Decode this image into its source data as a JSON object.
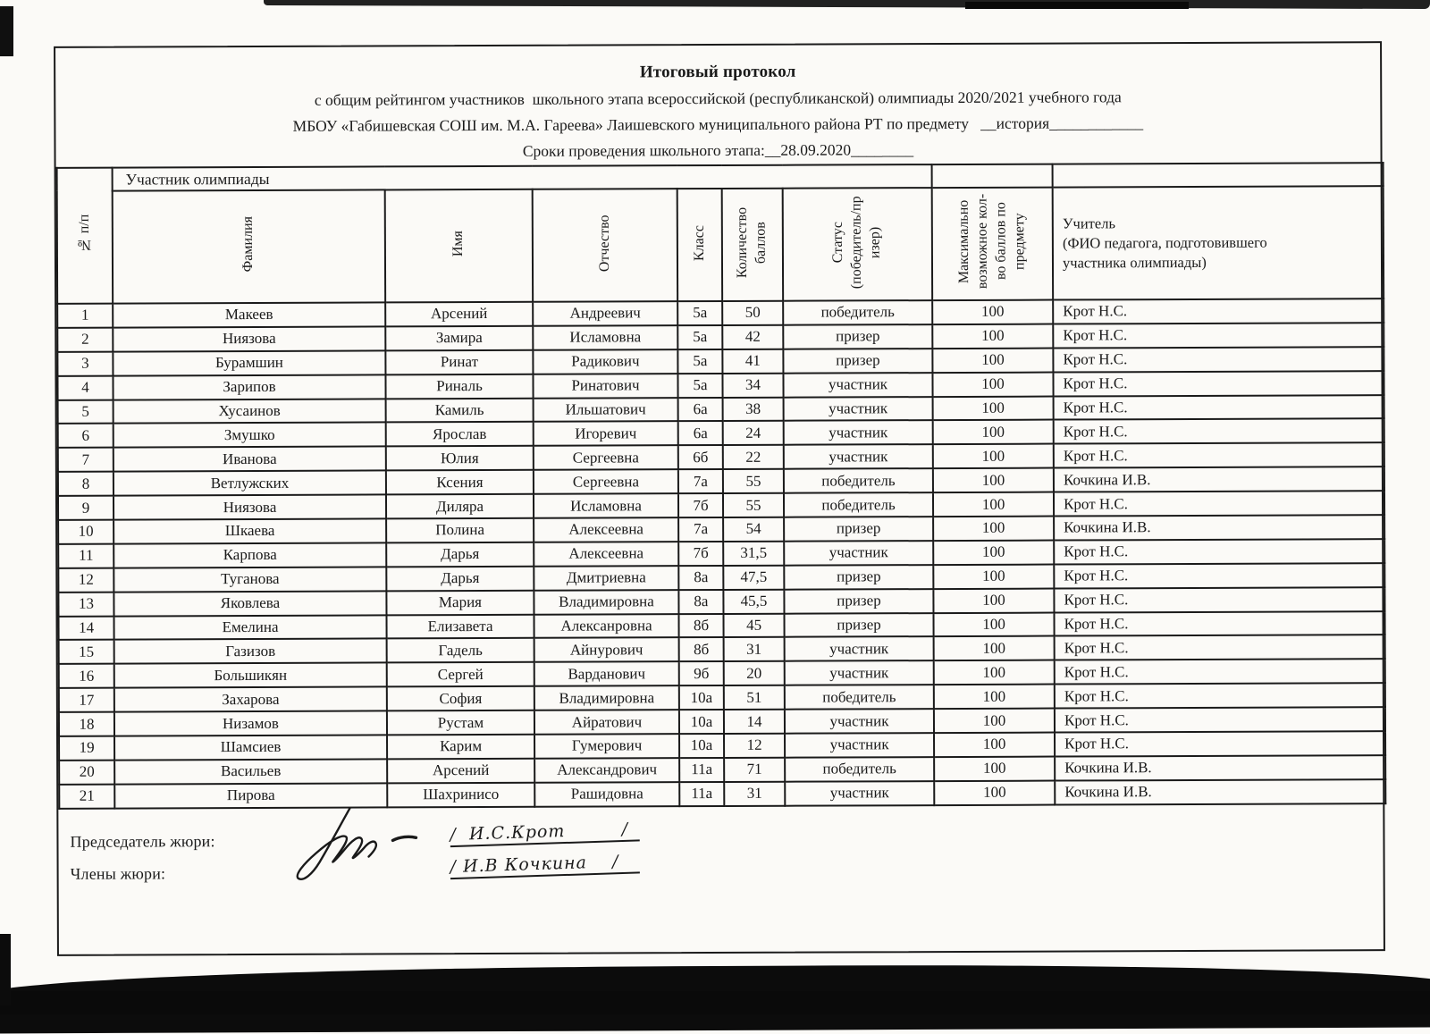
{
  "scan": {
    "ink_color": "#1a1a1a",
    "paper_color": "#fbfaf7",
    "edge_band_color": "#101010"
  },
  "header": {
    "title": "Итоговый протокол",
    "line2": "с общим рейтингом участников  школьного этапа всероссийской (республиканской) олимпиады 2020/2021 учебного года",
    "line3": "МБОУ «Габишевская СОШ им. М.А. Гареева» Лаишевского муниципального района РТ по предмету   __история____________",
    "line4": "Сроки проведения школьного этапа:__28.09.2020________"
  },
  "table": {
    "group_header": "Участник олимпиады",
    "columns": [
      "№ п/п",
      "Фамилия",
      "Имя",
      "Отчество",
      "Класс",
      "Количество\nбаллов",
      "Статус\n(победитель/пр\nизер)",
      "Максимально\nвозможное кол-\nво баллов  по\nпредмету",
      "Учитель\n(ФИО педагога, подготовившего\nучастника олимпиады)"
    ],
    "rows": [
      [
        "1",
        "Макеев",
        "Арсений",
        "Андреевич",
        "5а",
        "50",
        "победитель",
        "100",
        "Крот Н.С."
      ],
      [
        "2",
        "Ниязова",
        "Замира",
        "Исламовна",
        "5а",
        "42",
        "призер",
        "100",
        "Крот Н.С."
      ],
      [
        "3",
        "Бурамшин",
        "Ринат",
        "Радикович",
        "5а",
        "41",
        "призер",
        "100",
        "Крот Н.С."
      ],
      [
        "4",
        "Зарипов",
        "Риналь",
        "Ринатович",
        "5а",
        "34",
        "участник",
        "100",
        "Крот Н.С."
      ],
      [
        "5",
        "Хусаинов",
        "Камиль",
        "Ильшатович",
        "6а",
        "38",
        "участник",
        "100",
        "Крот Н.С."
      ],
      [
        "6",
        "Змушко",
        "Ярослав",
        "Игоревич",
        "6а",
        "24",
        "участник",
        "100",
        "Крот Н.С."
      ],
      [
        "7",
        "Иванова",
        "Юлия",
        "Сергеевна",
        "6б",
        "22",
        "участник",
        "100",
        "Крот Н.С."
      ],
      [
        "8",
        "Ветлужских",
        "Ксения",
        "Сергеевна",
        "7а",
        "55",
        "победитель",
        "100",
        "Кочкина И.В."
      ],
      [
        "9",
        "Ниязова",
        "Диляра",
        "Исламовна",
        "7б",
        "55",
        "победитель",
        "100",
        "Крот Н.С."
      ],
      [
        "10",
        "Шкаева",
        "Полина",
        "Алексеевна",
        "7а",
        "54",
        "призер",
        "100",
        "Кочкина И.В."
      ],
      [
        "11",
        "Карпова",
        "Дарья",
        "Алексеевна",
        "7б",
        "31,5",
        "участник",
        "100",
        "Крот Н.С."
      ],
      [
        "12",
        "Туганова",
        "Дарья",
        "Дмитриевна",
        "8а",
        "47,5",
        "призер",
        "100",
        "Крот Н.С."
      ],
      [
        "13",
        "Яковлева",
        "Мария",
        "Владимировна",
        "8а",
        "45,5",
        "призер",
        "100",
        "Крот Н.С."
      ],
      [
        "14",
        "Емелина",
        "Елизавета",
        "Алексанровна",
        "8б",
        "45",
        "призер",
        "100",
        "Крот Н.С."
      ],
      [
        "15",
        "Газизов",
        "Гадель",
        "Айнурович",
        "8б",
        "31",
        "участник",
        "100",
        "Крот Н.С."
      ],
      [
        "16",
        "Большикян",
        "Сергей",
        "Варданович",
        "9б",
        "20",
        "участник",
        "100",
        "Крот Н.С."
      ],
      [
        "17",
        "Захарова",
        "София",
        "Владимировна",
        "10а",
        "51",
        "победитель",
        "100",
        "Крот Н.С."
      ],
      [
        "18",
        "Низамов",
        "Рустам",
        "Айратович",
        "10а",
        "14",
        "участник",
        "100",
        "Крот Н.С."
      ],
      [
        "19",
        "Шамсиев",
        "Карим",
        "Гумерович",
        "10а",
        "12",
        "участник",
        "100",
        "Крот Н.С."
      ],
      [
        "20",
        "Васильев",
        "Арсений",
        "Александрович",
        "11а",
        "71",
        "победитель",
        "100",
        "Кочкина И.В."
      ],
      [
        "21",
        "Пирова",
        "Шахринисо",
        "Рашидовна",
        "11а",
        "31",
        "участник",
        "100",
        "Кочкина И.В."
      ]
    ]
  },
  "footer": {
    "chair_label": "Председатель жюри:",
    "members_label": "Члены жюри:",
    "chair_signature": "/  И.С.Крот         /",
    "member_signature": "/ И.В Кочкина    /"
  }
}
